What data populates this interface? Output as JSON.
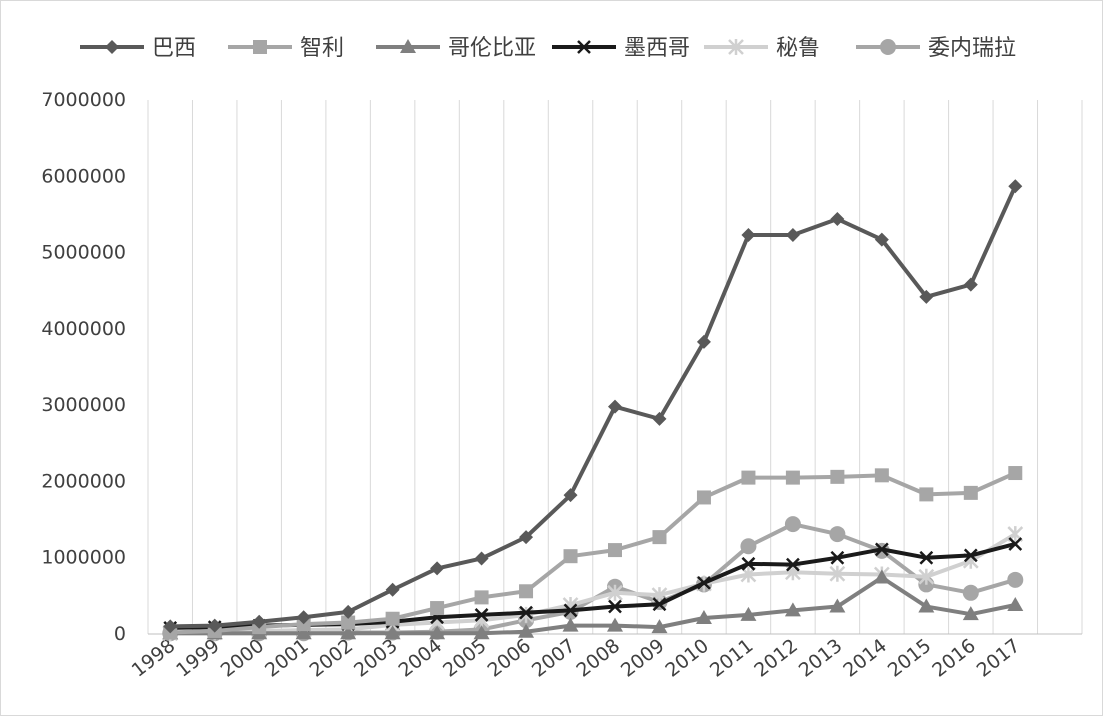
{
  "chart_data": {
    "type": "line",
    "categories": [
      "1998",
      "1999",
      "2000",
      "2001",
      "2002",
      "2003",
      "2004",
      "2005",
      "2006",
      "2007",
      "2008",
      "2009",
      "2010",
      "2011",
      "2012",
      "2013",
      "2014",
      "2015",
      "2016",
      "2017"
    ],
    "ylim": [
      0,
      7000000
    ],
    "yticks": [
      "0",
      "1000000",
      "2000000",
      "3000000",
      "4000000",
      "5000000",
      "6000000",
      "7000000"
    ],
    "grid": "vertical",
    "legend_position": "top",
    "series": [
      {
        "name": "巴西",
        "color": "#595959",
        "marker": "diamond",
        "values": [
          100000,
          110000,
          160000,
          220000,
          290000,
          580000,
          860000,
          990000,
          1270000,
          1820000,
          2980000,
          2820000,
          3830000,
          5230000,
          5230000,
          5440000,
          5170000,
          4420000,
          4580000,
          5870000
        ]
      },
      {
        "name": "智利",
        "color": "#a6a6a6",
        "marker": "square",
        "values": [
          20000,
          40000,
          90000,
          130000,
          150000,
          200000,
          340000,
          480000,
          560000,
          1020000,
          1100000,
          1270000,
          1790000,
          2050000,
          2050000,
          2060000,
          2080000,
          1830000,
          1850000,
          2110000
        ]
      },
      {
        "name": "哥伦比亚",
        "color": "#7f7f7f",
        "marker": "triangle",
        "values": [
          10000,
          10000,
          10000,
          10000,
          10000,
          10000,
          10000,
          10000,
          30000,
          110000,
          110000,
          90000,
          210000,
          250000,
          310000,
          360000,
          740000,
          360000,
          260000,
          380000
        ]
      },
      {
        "name": "墨西哥",
        "color": "#1a1a1a",
        "marker": "x",
        "values": [
          80000,
          90000,
          110000,
          120000,
          130000,
          160000,
          220000,
          250000,
          280000,
          310000,
          360000,
          390000,
          670000,
          920000,
          910000,
          1000000,
          1110000,
          1000000,
          1030000,
          1180000
        ]
      },
      {
        "name": "秘鲁",
        "color": "#d0d0d0",
        "marker": "star",
        "values": [
          10000,
          20000,
          40000,
          50000,
          60000,
          120000,
          150000,
          180000,
          250000,
          380000,
          540000,
          510000,
          660000,
          780000,
          810000,
          790000,
          780000,
          750000,
          960000,
          1310000
        ]
      },
      {
        "name": "委内瑞拉",
        "color": "#a6a6a6",
        "marker": "circle",
        "values": [
          10000,
          10000,
          10000,
          10000,
          20000,
          20000,
          30000,
          60000,
          180000,
          290000,
          620000,
          420000,
          650000,
          1150000,
          1440000,
          1310000,
          1090000,
          650000,
          540000,
          710000
        ]
      }
    ]
  }
}
